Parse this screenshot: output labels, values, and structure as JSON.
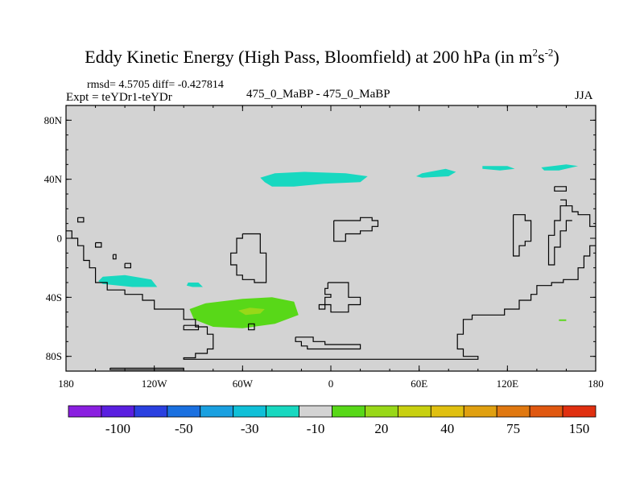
{
  "title": {
    "main": "Eddy Kinetic Energy (High Pass, Bloomfield) at 200 hPa (in m",
    "sup1": "2",
    "mid": "s",
    "sup2": "-2",
    "end": ")"
  },
  "stats": {
    "text": "rmsd= 4.5705 diff= -0.427814"
  },
  "expt": {
    "text": "Expt = teYDr1-teYDr"
  },
  "center_label": {
    "text": "475_0_MaBP - 475_0_MaBP"
  },
  "season": {
    "text": "JJA"
  },
  "map": {
    "lon_range": [
      -180,
      180
    ],
    "lat_range": [
      -90,
      90
    ],
    "background_color": "#d3d3d3",
    "lat_ticks": [
      {
        "value": 80,
        "label": "80N"
      },
      {
        "value": 40,
        "label": "40N"
      },
      {
        "value": 0,
        "label": "0"
      },
      {
        "value": -40,
        "label": "40S"
      },
      {
        "value": -80,
        "label": "80S"
      }
    ],
    "lon_ticks": [
      {
        "value": -180,
        "label": "180"
      },
      {
        "value": -120,
        "label": "120W"
      },
      {
        "value": -60,
        "label": "60W"
      },
      {
        "value": 0,
        "label": "0"
      },
      {
        "value": 60,
        "label": "60E"
      },
      {
        "value": 120,
        "label": "120E"
      },
      {
        "value": 180,
        "label": "180"
      }
    ]
  },
  "colorbar": {
    "colors": [
      "#8a1fe0",
      "#5a1fe0",
      "#2a40e0",
      "#1a70e0",
      "#1aa0e0",
      "#10c0d8",
      "#18d8c0",
      "#d3d3d3",
      "#58d818",
      "#98d818",
      "#c8d010",
      "#e0c010",
      "#e0a010",
      "#e07810",
      "#e05810",
      "#e03010"
    ],
    "labels": [
      {
        "boundary": 2,
        "label": "-100"
      },
      {
        "boundary": 4,
        "label": "-50"
      },
      {
        "boundary": 6,
        "label": "-30"
      },
      {
        "boundary": 8,
        "label": "-10"
      },
      {
        "boundary": 10,
        "label": "20"
      },
      {
        "boundary": 12,
        "label": "40"
      },
      {
        "boundary": 14,
        "label": "75"
      },
      {
        "boundary": 16,
        "label": "150"
      }
    ]
  },
  "anomaly_regions": [
    {
      "name": "north-pacific-band",
      "color": "#18d8c0",
      "points": [
        [
          -45,
          38
        ],
        [
          -48,
          41
        ],
        [
          -38,
          44
        ],
        [
          -18,
          45
        ],
        [
          10,
          44
        ],
        [
          25,
          42
        ],
        [
          20,
          38
        ],
        [
          -5,
          37
        ],
        [
          -25,
          35
        ],
        [
          -40,
          35
        ]
      ]
    },
    {
      "name": "north-atlantic-blob-1",
      "color": "#18d8c0",
      "points": [
        [
          62,
          44
        ],
        [
          78,
          47
        ],
        [
          85,
          45
        ],
        [
          80,
          42
        ],
        [
          62,
          41
        ],
        [
          58,
          42
        ]
      ]
    },
    {
      "name": "north-atlantic-blob-2",
      "color": "#18d8c0",
      "points": [
        [
          103,
          49
        ],
        [
          120,
          49
        ],
        [
          125,
          47
        ],
        [
          115,
          46
        ],
        [
          103,
          47
        ]
      ]
    },
    {
      "name": "north-atlantic-blob-3",
      "color": "#18d8c0",
      "points": [
        [
          143,
          48
        ],
        [
          160,
          50
        ],
        [
          168,
          49
        ],
        [
          155,
          46
        ],
        [
          145,
          46
        ]
      ]
    },
    {
      "name": "south-pacific-blob-1",
      "color": "#18d8c0",
      "points": [
        [
          -155,
          -26
        ],
        [
          -140,
          -25
        ],
        [
          -122,
          -28
        ],
        [
          -118,
          -33
        ],
        [
          -135,
          -33
        ],
        [
          -155,
          -31
        ],
        [
          -158,
          -29
        ]
      ]
    },
    {
      "name": "south-pacific-blob-2",
      "color": "#18d8c0",
      "points": [
        [
          -97,
          -30
        ],
        [
          -90,
          -30
        ],
        [
          -87,
          -33
        ],
        [
          -94,
          -33
        ],
        [
          -98,
          -32
        ]
      ]
    },
    {
      "name": "southern-ocean-positive",
      "color": "#58d818",
      "points": [
        [
          -96,
          -48
        ],
        [
          -85,
          -44
        ],
        [
          -60,
          -41
        ],
        [
          -40,
          -40
        ],
        [
          -25,
          -43
        ],
        [
          -22,
          -52
        ],
        [
          -38,
          -58
        ],
        [
          -60,
          -61
        ],
        [
          -80,
          -60
        ],
        [
          -93,
          -55
        ]
      ]
    },
    {
      "name": "southern-ocean-inner",
      "color": "#98d818",
      "points": [
        [
          -63,
          -49
        ],
        [
          -55,
          -47
        ],
        [
          -45,
          -48
        ],
        [
          -48,
          -51
        ],
        [
          -58,
          -52
        ]
      ]
    },
    {
      "name": "south-indian-dot",
      "color": "#58d818",
      "points": [
        [
          155,
          -55
        ],
        [
          160,
          -55
        ],
        [
          160,
          -56
        ],
        [
          155,
          -56
        ]
      ]
    }
  ],
  "coastlines": [
    [
      [
        -180,
        5
      ],
      [
        -176,
        5
      ],
      [
        -176,
        0
      ],
      [
        -172,
        0
      ],
      [
        -172,
        -5
      ],
      [
        -168,
        -5
      ],
      [
        -168,
        -15
      ],
      [
        -164,
        -15
      ],
      [
        -164,
        -20
      ],
      [
        -160,
        -20
      ],
      [
        -160,
        -30
      ],
      [
        -152,
        -30
      ],
      [
        -152,
        -35
      ],
      [
        -140,
        -35
      ],
      [
        -140,
        -38
      ],
      [
        -128,
        -38
      ],
      [
        -128,
        -42
      ],
      [
        -120,
        -42
      ],
      [
        -120,
        -48
      ],
      [
        -100,
        -48
      ],
      [
        -100,
        -55
      ],
      [
        -92,
        -55
      ],
      [
        -92,
        -60
      ],
      [
        -84,
        -60
      ],
      [
        -84,
        -65
      ],
      [
        -80,
        -65
      ],
      [
        -80,
        -75
      ],
      [
        -84,
        -75
      ],
      [
        -84,
        -78
      ],
      [
        -92,
        -78
      ],
      [
        -92,
        -81
      ],
      [
        -100,
        -81
      ],
      [
        -100,
        -82
      ],
      [
        100,
        -82
      ],
      [
        100,
        -80
      ],
      [
        90,
        -80
      ],
      [
        90,
        -75
      ],
      [
        86,
        -75
      ],
      [
        86,
        -65
      ],
      [
        90,
        -65
      ],
      [
        90,
        -55
      ],
      [
        96,
        -55
      ],
      [
        96,
        -52
      ],
      [
        118,
        -52
      ],
      [
        118,
        -48
      ],
      [
        128,
        -48
      ],
      [
        128,
        -42
      ],
      [
        136,
        -42
      ],
      [
        136,
        -38
      ],
      [
        140,
        -38
      ],
      [
        140,
        -32
      ],
      [
        150,
        -32
      ],
      [
        150,
        -30
      ],
      [
        158,
        -30
      ],
      [
        158,
        -28
      ],
      [
        168,
        -28
      ],
      [
        168,
        -20
      ],
      [
        172,
        -20
      ],
      [
        172,
        -12
      ],
      [
        176,
        -12
      ],
      [
        176,
        -5
      ],
      [
        180,
        -5
      ]
    ],
    [
      [
        -172,
        14
      ],
      [
        -168,
        14
      ],
      [
        -168,
        11
      ],
      [
        -172,
        11
      ],
      [
        -172,
        14
      ]
    ],
    [
      [
        -160,
        -3
      ],
      [
        -156,
        -3
      ],
      [
        -156,
        -6
      ],
      [
        -160,
        -6
      ],
      [
        -160,
        -3
      ]
    ],
    [
      [
        -148,
        -11
      ],
      [
        -146,
        -11
      ],
      [
        -146,
        -14
      ],
      [
        -148,
        -14
      ],
      [
        -148,
        -11
      ]
    ],
    [
      [
        -140,
        -17
      ],
      [
        -136,
        -17
      ],
      [
        -136,
        -20
      ],
      [
        -140,
        -20
      ],
      [
        -140,
        -17
      ]
    ],
    [
      [
        -60,
        3
      ],
      [
        -48,
        3
      ],
      [
        -48,
        -10
      ],
      [
        -44,
        -10
      ],
      [
        -44,
        -30
      ],
      [
        -52,
        -30
      ],
      [
        -52,
        -28
      ],
      [
        -60,
        -28
      ],
      [
        -60,
        -25
      ],
      [
        -64,
        -25
      ],
      [
        -64,
        -18
      ],
      [
        -68,
        -18
      ],
      [
        -68,
        -10
      ],
      [
        -64,
        -10
      ],
      [
        -64,
        0
      ],
      [
        -60,
        0
      ],
      [
        -60,
        3
      ]
    ],
    [
      [
        -100,
        -59
      ],
      [
        -90,
        -59
      ],
      [
        -90,
        -62
      ],
      [
        -100,
        -62
      ],
      [
        -100,
        -59
      ]
    ],
    [
      [
        -56,
        -58
      ],
      [
        -52,
        -58
      ],
      [
        -52,
        -62
      ],
      [
        -56,
        -62
      ],
      [
        -56,
        -58
      ]
    ],
    [
      [
        -24,
        -67
      ],
      [
        -12,
        -67
      ],
      [
        -12,
        -70
      ],
      [
        -4,
        -70
      ],
      [
        -4,
        -72
      ],
      [
        20,
        -72
      ],
      [
        20,
        -75
      ],
      [
        -16,
        -75
      ],
      [
        -16,
        -73
      ],
      [
        -20,
        -73
      ],
      [
        -20,
        -70
      ],
      [
        -24,
        -70
      ],
      [
        -24,
        -67
      ]
    ],
    [
      [
        -2,
        -30
      ],
      [
        12,
        -30
      ],
      [
        12,
        -40
      ],
      [
        20,
        -40
      ],
      [
        20,
        -45
      ],
      [
        12,
        -45
      ],
      [
        12,
        -50
      ],
      [
        0,
        -50
      ],
      [
        0,
        -45
      ],
      [
        -4,
        -45
      ],
      [
        -4,
        -48
      ],
      [
        -8,
        -48
      ],
      [
        -8,
        -45
      ],
      [
        -4,
        -45
      ],
      [
        -4,
        -40
      ],
      [
        0,
        -40
      ],
      [
        0,
        -38
      ],
      [
        -4,
        -38
      ],
      [
        -4,
        -34
      ],
      [
        -2,
        -34
      ],
      [
        -2,
        -30
      ]
    ],
    [
      [
        2,
        12
      ],
      [
        20,
        12
      ],
      [
        20,
        14
      ],
      [
        28,
        14
      ],
      [
        28,
        12
      ],
      [
        32,
        12
      ],
      [
        32,
        8
      ],
      [
        28,
        8
      ],
      [
        28,
        5
      ],
      [
        20,
        5
      ],
      [
        20,
        3
      ],
      [
        10,
        3
      ],
      [
        10,
        -2
      ],
      [
        2,
        -2
      ],
      [
        2,
        12
      ]
    ],
    [
      [
        152,
        35
      ],
      [
        160,
        35
      ],
      [
        160,
        32
      ],
      [
        152,
        32
      ],
      [
        152,
        35
      ]
    ],
    [
      [
        124,
        16
      ],
      [
        132,
        16
      ],
      [
        132,
        12
      ],
      [
        136,
        12
      ],
      [
        136,
        -2
      ],
      [
        132,
        -2
      ],
      [
        132,
        -5
      ],
      [
        128,
        -5
      ],
      [
        128,
        -12
      ],
      [
        124,
        -12
      ],
      [
        124,
        16
      ]
    ],
    [
      [
        156,
        26
      ],
      [
        160,
        26
      ],
      [
        160,
        22
      ],
      [
        164,
        22
      ],
      [
        164,
        18
      ],
      [
        168,
        18
      ],
      [
        168,
        16
      ],
      [
        176,
        16
      ],
      [
        176,
        8
      ],
      [
        180,
        8
      ]
    ],
    [
      [
        160,
        22
      ],
      [
        156,
        22
      ],
      [
        156,
        12
      ],
      [
        152,
        12
      ],
      [
        152,
        2
      ],
      [
        148,
        2
      ],
      [
        148,
        -18
      ],
      [
        152,
        -18
      ],
      [
        152,
        -6
      ],
      [
        156,
        -6
      ],
      [
        156,
        5
      ],
      [
        160,
        5
      ],
      [
        160,
        12
      ],
      [
        164,
        12
      ]
    ],
    [
      [
        -150,
        -88
      ],
      [
        -100,
        -88
      ],
      [
        -100,
        -89
      ],
      [
        -150,
        -89
      ],
      [
        -150,
        -88
      ]
    ]
  ]
}
